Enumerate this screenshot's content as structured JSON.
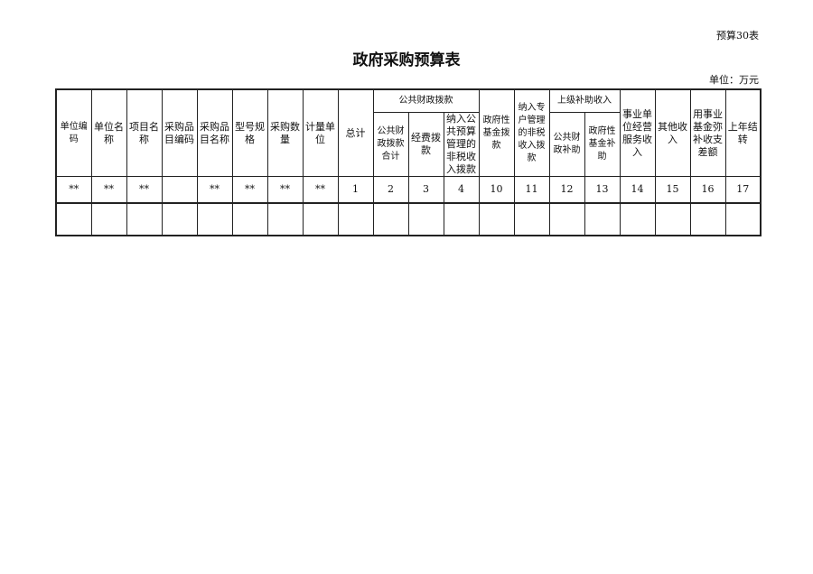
{
  "table_code": "预算30表",
  "title": "政府采购预算表",
  "unit": "单位：万元",
  "headers": {
    "unit_code": "单位编码",
    "unit_name": "单位名\n称",
    "project_name": "项目名\n称",
    "item_code": "采购品\n目编码",
    "item_name": "采购品\n目名称",
    "model": "型号规\n格",
    "quantity": "采购数\n量",
    "measure_unit": "计量单\n位",
    "total": "总计",
    "public_finance_group": "公共财政拨款",
    "public_finance_total": "公共财\n政拨款\n合计",
    "funding": "经费拨\n款",
    "nontax_budget": "纳入公\n共预算\n管理的\n非税收\n入拨款",
    "gov_fund": "政府性\n基金拨\n款",
    "nontax_special": "纳入专\n户管理\n的非税\n收入拨\n款",
    "superior_subsidy_group": "上级补助收入",
    "public_finance_subsidy": "公共财\n政补助",
    "gov_fund_subsidy": "政府性\n基金补\n助",
    "business_income": "事业单\n位经营\n服务收\n入",
    "other_income": "其他收\n入",
    "fund_offset": "用事业\n基金弥\n补收支\n差额",
    "carryover": "上年结\n转"
  },
  "rows": [
    [
      "**",
      "**",
      "**",
      "",
      "**",
      "**",
      "**",
      "**",
      "1",
      "2",
      "3",
      "4",
      "10",
      "11",
      "12",
      "13",
      "14",
      "15",
      "16",
      "17"
    ],
    [
      "",
      "",
      "",
      "",
      "",
      "",
      "",
      "",
      "",
      "",
      "",
      "",
      "",
      "",
      "",
      "",
      "",
      "",
      "",
      ""
    ]
  ]
}
